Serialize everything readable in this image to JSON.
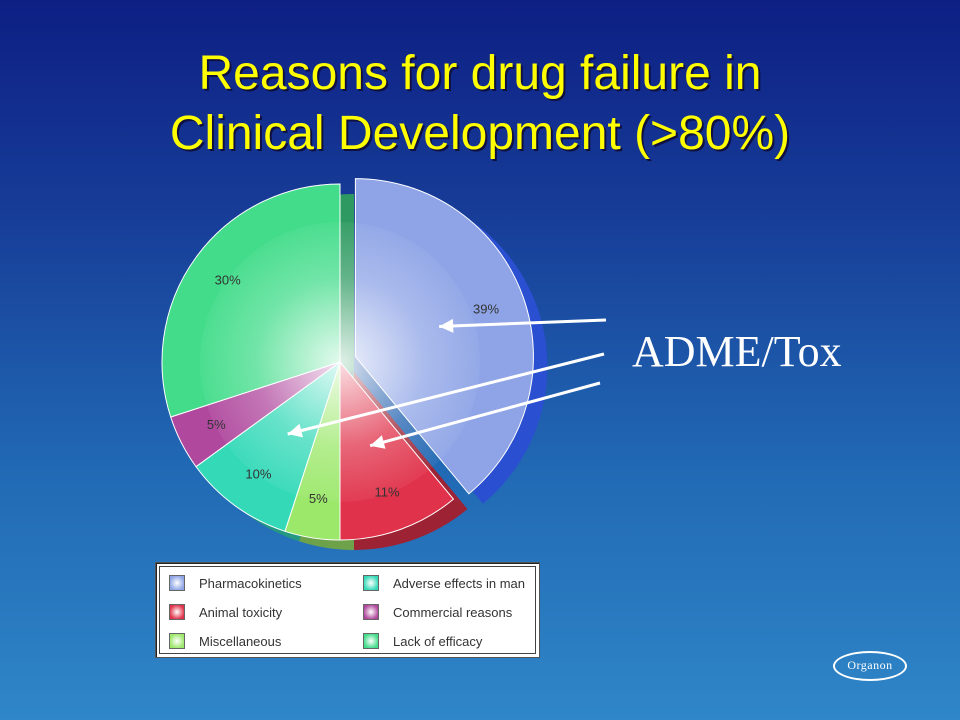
{
  "slide": {
    "title_line1": "Reasons for drug failure in",
    "title_line2": "Clinical Development (>80%)",
    "annotation": "ADME/Tox",
    "logo_text": "Organon"
  },
  "chart_data": {
    "type": "pie",
    "title": "",
    "slices": [
      {
        "name": "Pharmacokinetics",
        "value": 39,
        "label": "39%",
        "color": "#8ea4e6",
        "exploded": true
      },
      {
        "name": "Animal toxicity",
        "value": 11,
        "label": "11%",
        "color": "#e0324a"
      },
      {
        "name": "Miscellaneous",
        "value": 5,
        "label": "5%",
        "color": "#9be86a"
      },
      {
        "name": "Adverse effects in man",
        "value": 10,
        "label": "10%",
        "color": "#34d9b8"
      },
      {
        "name": "Commercial reasons",
        "value": 5,
        "label": "5%",
        "color": "#b0499e"
      },
      {
        "name": "Lack of efficacy",
        "value": 30,
        "label": "30%",
        "color": "#42dc8a"
      }
    ],
    "legend": {
      "placement": "bottom",
      "entries": [
        {
          "label": "Pharmacokinetics",
          "color": "#8ea4e6"
        },
        {
          "label": "Animal toxicity",
          "color": "#e0324a"
        },
        {
          "label": "Miscellaneous",
          "color": "#9be86a"
        },
        {
          "label": "Adverse effects in man",
          "color": "#34d9b8"
        },
        {
          "label": "Commercial reasons",
          "color": "#b0499e"
        },
        {
          "label": "Lack of efficacy",
          "color": "#42dc8a"
        }
      ]
    },
    "annotation_arrows_point_to": [
      "Pharmacokinetics",
      "Adverse effects in man",
      "Animal toxicity"
    ]
  }
}
